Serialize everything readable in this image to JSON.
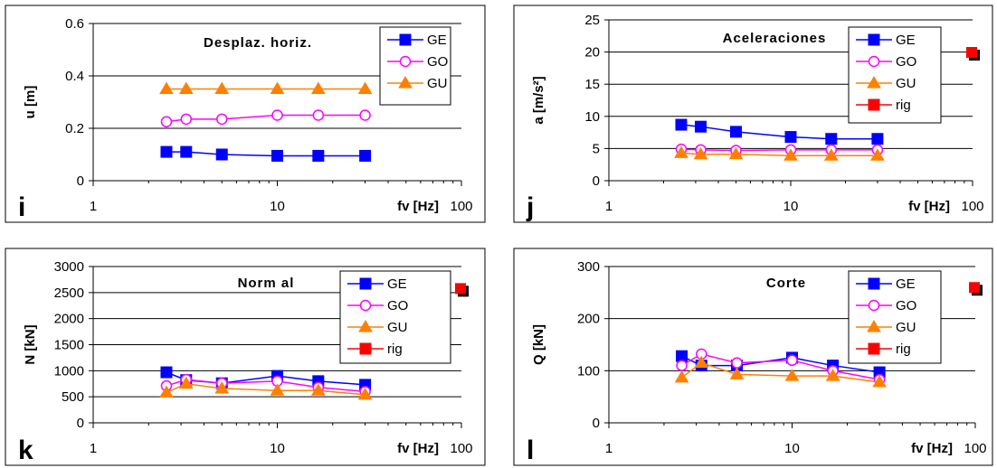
{
  "chart_data": [
    {
      "type": "line",
      "panel_label": "i",
      "title": "Desplaz. horiz.",
      "xlabel": "fv [Hz]",
      "ylabel": "u [m]",
      "xscale": "log",
      "xlim": [
        1,
        100
      ],
      "ylim": [
        0,
        0.6
      ],
      "xticks": [
        "1",
        "10",
        "100"
      ],
      "yticks": [
        "0",
        "0.2",
        "0.4",
        "0.6"
      ],
      "grid": "horizontal",
      "legend_position": "top-right",
      "series": [
        {
          "name": "GE",
          "color": "#0000ff",
          "marker": "square",
          "x": [
            2.5,
            3.2,
            5,
            10,
            16.7,
            30
          ],
          "y": [
            0.11,
            0.11,
            0.1,
            0.095,
            0.095,
            0.095
          ]
        },
        {
          "name": "GO",
          "color": "#ff00ff",
          "marker": "circle-open",
          "x": [
            2.5,
            3.2,
            5,
            10,
            16.7,
            30
          ],
          "y": [
            0.225,
            0.235,
            0.235,
            0.25,
            0.25,
            0.25
          ]
        },
        {
          "name": "GU",
          "color": "#ff8000",
          "marker": "triangle",
          "x": [
            2.5,
            3.2,
            5,
            10,
            16.7,
            30
          ],
          "y": [
            0.35,
            0.35,
            0.35,
            0.35,
            0.35,
            0.35
          ]
        }
      ]
    },
    {
      "type": "line",
      "panel_label": "j",
      "title": "Aceleraciones",
      "xlabel": "fv [Hz]",
      "ylabel": "a [m/s²]",
      "xscale": "log",
      "xlim": [
        1,
        100
      ],
      "ylim": [
        0,
        25
      ],
      "xticks": [
        "1",
        "10",
        "100"
      ],
      "yticks": [
        "0",
        "5",
        "10",
        "15",
        "20",
        "25"
      ],
      "grid": "horizontal",
      "legend_position": "top-right",
      "series": [
        {
          "name": "GE",
          "color": "#0000ff",
          "marker": "square",
          "x": [
            2.5,
            3.2,
            5,
            10,
            16.7,
            30
          ],
          "y": [
            8.7,
            8.4,
            7.6,
            6.8,
            6.5,
            6.5
          ]
        },
        {
          "name": "GO",
          "color": "#ff00ff",
          "marker": "circle-open",
          "x": [
            2.5,
            3.2,
            5,
            10,
            16.7,
            30
          ],
          "y": [
            4.9,
            4.8,
            4.7,
            4.8,
            4.8,
            4.8
          ]
        },
        {
          "name": "GU",
          "color": "#ff8000",
          "marker": "triangle",
          "x": [
            2.5,
            3.2,
            5,
            10,
            16.7,
            30
          ],
          "y": [
            4.3,
            4.1,
            4.1,
            3.9,
            3.9,
            3.9
          ]
        },
        {
          "name": "rig",
          "color": "#ff0000",
          "marker": "square",
          "x": [
            100
          ],
          "y": [
            19.8
          ]
        }
      ]
    },
    {
      "type": "line",
      "panel_label": "k",
      "title": "Norm al",
      "xlabel": "fv [Hz]",
      "ylabel": "N [kN]",
      "xscale": "log",
      "xlim": [
        1,
        100
      ],
      "ylim": [
        0,
        3000
      ],
      "xticks": [
        "1",
        "10",
        "100"
      ],
      "yticks": [
        "0",
        "500",
        "1000",
        "1500",
        "2000",
        "2500",
        "3000"
      ],
      "grid": "horizontal",
      "legend_position": "top-right",
      "series": [
        {
          "name": "GE",
          "color": "#0000ff",
          "marker": "square",
          "x": [
            2.5,
            3.2,
            5,
            10,
            16.7,
            30
          ],
          "y": [
            970,
            820,
            760,
            900,
            800,
            730
          ]
        },
        {
          "name": "GO",
          "color": "#ff00ff",
          "marker": "circle-open",
          "x": [
            2.5,
            3.2,
            5,
            10,
            16.7,
            30
          ],
          "y": [
            710,
            830,
            760,
            800,
            680,
            600
          ]
        },
        {
          "name": "GU",
          "color": "#ff8000",
          "marker": "triangle",
          "x": [
            2.5,
            3.2,
            5,
            10,
            16.7,
            30
          ],
          "y": [
            580,
            750,
            660,
            620,
            620,
            540
          ]
        },
        {
          "name": "rig",
          "color": "#ff0000",
          "marker": "square",
          "x": [
            100
          ],
          "y": [
            2560
          ]
        }
      ]
    },
    {
      "type": "line",
      "panel_label": "l",
      "title": "Corte",
      "xlabel": "fv [Hz]",
      "ylabel": "Q [kN]",
      "xscale": "log",
      "xlim": [
        1,
        100
      ],
      "ylim": [
        0,
        300
      ],
      "xticks": [
        "1",
        "10",
        "100"
      ],
      "yticks": [
        "0",
        "100",
        "200",
        "300"
      ],
      "grid": "horizontal",
      "legend_position": "top-right",
      "series": [
        {
          "name": "GE",
          "color": "#0000ff",
          "marker": "square",
          "x": [
            2.5,
            3.2,
            5,
            10,
            16.7,
            30
          ],
          "y": [
            128,
            110,
            110,
            125,
            110,
            97
          ]
        },
        {
          "name": "GO",
          "color": "#ff00ff",
          "marker": "circle-open",
          "x": [
            2.5,
            3.2,
            5,
            10,
            16.7,
            30
          ],
          "y": [
            110,
            132,
            115,
            120,
            100,
            83
          ]
        },
        {
          "name": "GU",
          "color": "#ff8000",
          "marker": "triangle",
          "x": [
            2.5,
            3.2,
            5,
            10,
            16.7,
            30
          ],
          "y": [
            87,
            115,
            93,
            90,
            90,
            78
          ]
        },
        {
          "name": "rig",
          "color": "#ff0000",
          "marker": "square",
          "x": [
            100
          ],
          "y": [
            258
          ]
        }
      ]
    }
  ]
}
